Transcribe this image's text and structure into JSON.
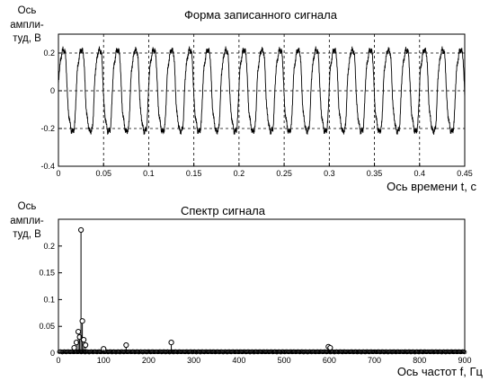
{
  "chart_data": [
    {
      "type": "line",
      "title": "Форма записанного сигнала",
      "ylabel_lines": [
        "Ось",
        "ампли-",
        "туд, В"
      ],
      "xlabel": "Ось времени t, с",
      "xlim": [
        0,
        0.45
      ],
      "ylim": [
        -0.4,
        0.3
      ],
      "xticks": [
        0,
        0.05,
        0.1,
        0.15,
        0.2,
        0.25,
        0.3,
        0.35,
        0.4,
        0.45
      ],
      "xtick_labels": [
        "0",
        "0.05",
        "0.1",
        "0.15",
        "0.2",
        "0.25",
        "0.3",
        "0.35",
        "0.4",
        "0.45"
      ],
      "yticks": [
        -0.4,
        -0.2,
        0,
        0.2
      ],
      "ytick_labels": [
        "-0.4",
        "-0.2",
        "0",
        "0.2"
      ],
      "grid": true,
      "series": [
        {
          "description_of_shape": "periodic signal, period 0.02 s",
          "frequency_hz": 50,
          "amplitude": 0.25,
          "peak_values": [
            0.25,
            -0.27
          ],
          "x_range": [
            0,
            0.45
          ]
        }
      ]
    },
    {
      "type": "stem",
      "title": "Спектр сигнала",
      "ylabel_lines": [
        "Ось",
        "ампли-",
        "туд, В"
      ],
      "xlabel": "Ось частот f, Гц",
      "xlim": [
        0,
        900
      ],
      "ylim": [
        0,
        0.25
      ],
      "xticks": [
        0,
        100,
        200,
        300,
        400,
        500,
        600,
        700,
        800,
        900
      ],
      "xtick_labels": [
        "0",
        "100",
        "200",
        "300",
        "400",
        "500",
        "600",
        "700",
        "800",
        "900"
      ],
      "yticks": [
        0,
        0.05,
        0.1,
        0.15,
        0.2
      ],
      "ytick_labels": [
        "0",
        "0.05",
        "0.1",
        "0.15",
        "0.2"
      ],
      "grid": false,
      "peaks": [
        {
          "f": 35,
          "a": 0.01
        },
        {
          "f": 40,
          "a": 0.02
        },
        {
          "f": 44,
          "a": 0.04
        },
        {
          "f": 47,
          "a": 0.03
        },
        {
          "f": 50,
          "a": 0.23
        },
        {
          "f": 53,
          "a": 0.06
        },
        {
          "f": 56,
          "a": 0.025
        },
        {
          "f": 60,
          "a": 0.015
        },
        {
          "f": 100,
          "a": 0.008
        },
        {
          "f": 150,
          "a": 0.015
        },
        {
          "f": 250,
          "a": 0.02
        },
        {
          "f": 598,
          "a": 0.012
        },
        {
          "f": 602,
          "a": 0.01
        }
      ],
      "baseline_level": 0.003,
      "frequency_step_hz": 2.2
    }
  ]
}
